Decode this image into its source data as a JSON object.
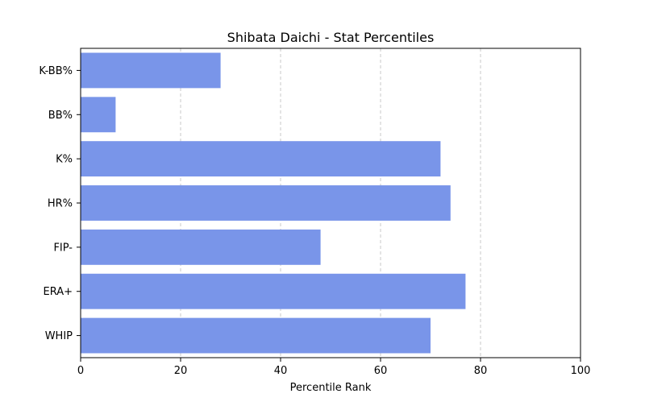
{
  "chart_data": {
    "type": "bar",
    "orientation": "horizontal",
    "title": "Shibata Daichi - Stat Percentiles",
    "xlabel": "Percentile Rank",
    "ylabel": "",
    "categories": [
      "K-BB%",
      "BB%",
      "K%",
      "HR%",
      "FIP-",
      "ERA+",
      "WHIP"
    ],
    "values": [
      28,
      7,
      72,
      74,
      48,
      77,
      70
    ],
    "xlim": [
      0,
      100
    ],
    "xticks": [
      0,
      20,
      40,
      60,
      80,
      100
    ],
    "grid": "x-axis dashed",
    "bar_color": "#7995e9"
  }
}
